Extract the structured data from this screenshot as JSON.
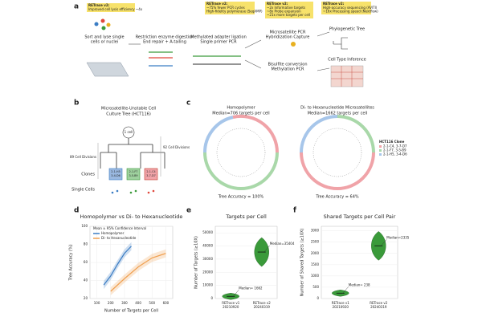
{
  "panel_labels": [
    "a",
    "b",
    "c",
    "d",
    "e",
    "f"
  ],
  "panel_a": {
    "boxes": [
      {
        "title": "RETrace v2:",
        "lines": [
          "Improved cell lysis efficiency ~4x"
        ]
      },
      {
        "title": "RETrace v2:",
        "lines": [
          "~75% fewer PCR cycles",
          "High-fidelity polymerase (SeqAMP)"
        ]
      },
      {
        "title": "RETrace v2:",
        "lines": [
          "~2x Informative targets",
          "~8x Probe expansion",
          "~21x more targets per cell"
        ]
      },
      {
        "title": "RETrace v2:",
        "lines": [
          "High-accuracy sequencing (AVITI)",
          "~16x Processing speed (Nextflow)"
        ]
      }
    ],
    "steps": [
      [
        "Sort and lyse single",
        "cells or nuclei"
      ],
      [
        "Restriction enzyme digestion",
        "End repair + A-tailing"
      ],
      [
        "Methylated adapter ligation",
        "Single primer PCR"
      ],
      [
        "Microsatellite PCR",
        "Hybridization Capture"
      ],
      [
        "Bisulfite conversion",
        "Methylation PCR"
      ],
      [
        "Phylogenetic Tree"
      ],
      [
        "Cell Type Inference"
      ]
    ]
  },
  "panel_b": {
    "title": [
      "Microsatellite-Unstable Cell",
      "Culture Tree (HCT116)"
    ],
    "root": "1 cell",
    "left_divisions": "89 Cell Divisions",
    "right_divisions": "92 Cell Divisions",
    "clones_label": "Clones",
    "cells_label": "Single Cells",
    "clones": [
      [
        "2-1-H5",
        "3-4-D6"
      ],
      [
        "2-1-F7",
        "3-5-B9"
      ],
      [
        "2-1-C4",
        "3-7-D7"
      ]
    ]
  },
  "panel_c": {
    "trees": [
      {
        "title": [
          "Homopolymer",
          "Median=706 targets per cell"
        ],
        "accuracy": "Tree Accuracy = 100%"
      },
      {
        "title": [
          "Di- to Hexanucleotide Microsatellites",
          "Median=1662 targets per cell"
        ],
        "accuracy": "Tree Accuracy = 64%"
      }
    ],
    "legend_title": "HCT116 Clone",
    "legend": [
      "2-1-C4, 3-7-D7",
      "2-1-F7, 3-5-B9",
      "2-1-H5, 3-4-D6"
    ]
  },
  "chart_data": [
    {
      "type": "line",
      "title": "Homopolymer vs Di- to Hexanucleotide",
      "x_label": "Number of Targets per Cell",
      "y_label": "Tree Accuracy (%)",
      "legend_title": "Mean ± 95% Confidence Interval",
      "series": [
        {
          "name": "Homopolymer",
          "color": "#3b7dc4",
          "x": [
            150,
            200,
            250,
            300,
            350
          ],
          "values": [
            35,
            45,
            58,
            70,
            78
          ]
        },
        {
          "name": "Di- to Hexanucleotide",
          "color": "#f0a050",
          "x": [
            200,
            300,
            400,
            500,
            600
          ],
          "values": [
            28,
            42,
            55,
            65,
            70
          ]
        }
      ],
      "xlim": [
        50,
        650
      ],
      "xticks": [
        100,
        200,
        300,
        400,
        500,
        600
      ],
      "ylim": [
        20,
        100
      ],
      "yticks": [
        20,
        40,
        60,
        80,
        100
      ],
      "grid": true
    },
    {
      "type": "violin",
      "title": "Targets per Cell",
      "y_label": "Number of Targets (≥10X)",
      "categories": [
        "RETrace v1",
        "RETrace v2"
      ],
      "dates": [
        "20210920",
        "20240319"
      ],
      "values": [
        1662,
        35404
      ],
      "annotations": [
        "Median= 1662",
        "Median=35404"
      ],
      "color": "#3a9a3a",
      "ylim": [
        0,
        55000
      ],
      "yticks": [
        0,
        10000,
        20000,
        30000,
        40000,
        50000
      ],
      "grid": true
    },
    {
      "type": "violin",
      "title": "Shared Targets per Cell Pair",
      "y_label": "Number of Shared Targets (≥10X)",
      "categories": [
        "RETrace v1",
        "RETrace v2"
      ],
      "dates": [
        "20210920",
        "20240319"
      ],
      "values": [
        238,
        2335
      ],
      "annotations": [
        "Median= 238",
        "Median=2335"
      ],
      "color": "#3a9a3a",
      "ylim": [
        0,
        3200
      ],
      "yticks": [
        0,
        500,
        1000,
        1500,
        2000,
        2500,
        3000
      ],
      "grid": true
    }
  ]
}
